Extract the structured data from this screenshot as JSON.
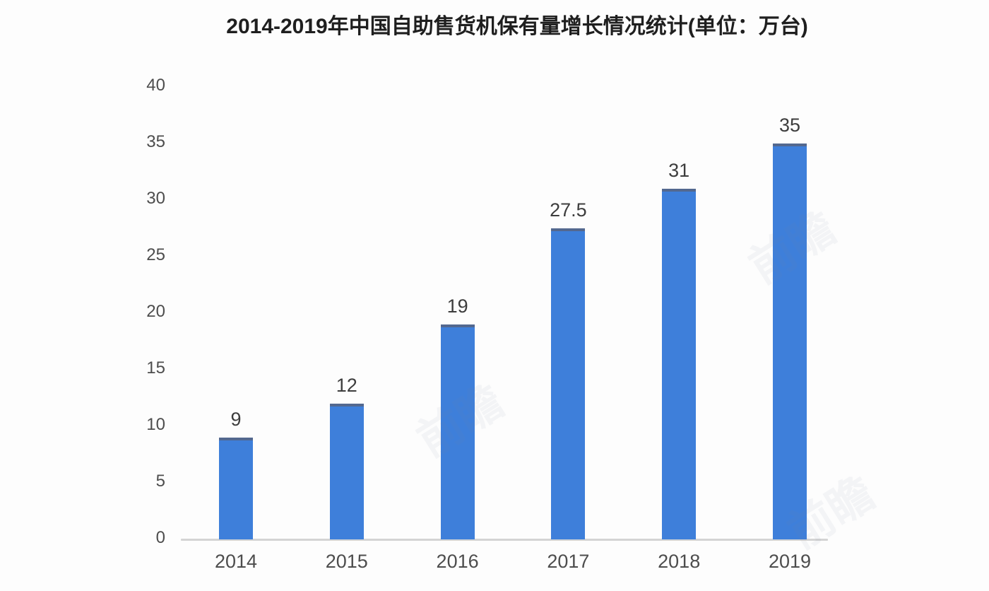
{
  "chart_data": {
    "type": "bar",
    "title": "2014-2019年中国自助售货机保有量增长情况统计(单位：万台)",
    "categories": [
      "2014",
      "2015",
      "2016",
      "2017",
      "2018",
      "2019"
    ],
    "values": [
      9,
      12,
      19,
      27.5,
      31,
      35
    ],
    "xlabel": "",
    "ylabel": "",
    "ylim": [
      0,
      40
    ],
    "ytick_step": 5,
    "grid": false,
    "legend": "none",
    "bar_color": "#3e7fda",
    "bar_cap_color": "#53688f",
    "value_label_color": "#3d3d3d",
    "axis_tick_color": "#4d4d4d",
    "axis_line_color": "#d4d4d4",
    "title_color": "#1f1f1f",
    "background_color": "#fdfdfd"
  },
  "watermark": {
    "text": "前瞻"
  }
}
